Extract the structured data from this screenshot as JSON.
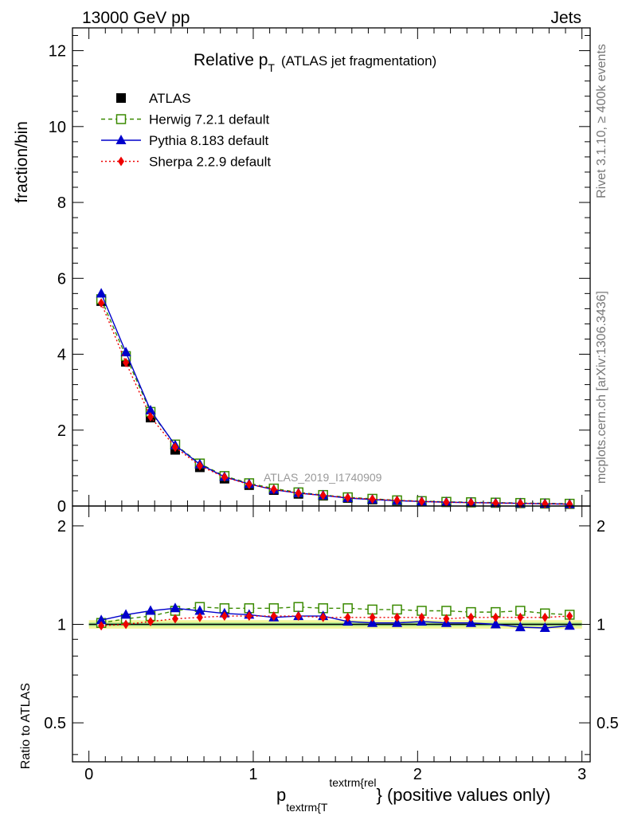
{
  "header": {
    "left": "13000 GeV pp",
    "right": "Jets"
  },
  "side_labels": {
    "rivet": "Rivet 3.1.10, ≥ 400k events",
    "mcplots": "mcplots.cern.ch [arXiv:1306.3436]"
  },
  "chart_data": {
    "type": "line",
    "title_main": "Relative p",
    "title_sub": "T",
    "title_rest": "(ATLAS jet fragmentation)",
    "analysis_label": "ATLAS_2019_I1740909",
    "ylabel": "fraction/bin",
    "ratio_ylabel": "Ratio to ATLAS",
    "xlabel_p": "p",
    "xlabel_sub": "textrm{T",
    "xlabel_sup": "textrm{rel",
    "xlabel_rest": "} (positive values only)",
    "xlim": [
      -0.1,
      3.05
    ],
    "ylim": [
      0,
      12.6
    ],
    "ratio_ylim": [
      0.38,
      2.3
    ],
    "x_ticks": [
      "0",
      "1",
      "2",
      "3"
    ],
    "y_ticks": [
      "0",
      "2",
      "4",
      "6",
      "8",
      "10",
      "12"
    ],
    "ratio_ticks": [
      "0.5",
      "1",
      "2"
    ],
    "x": [
      0.075,
      0.225,
      0.375,
      0.525,
      0.675,
      0.825,
      0.975,
      1.125,
      1.275,
      1.425,
      1.575,
      1.725,
      1.875,
      2.025,
      2.175,
      2.325,
      2.475,
      2.625,
      2.775,
      2.925
    ],
    "series": [
      {
        "name": "ATLAS",
        "color": "#000000",
        "values": [
          5.4,
          3.8,
          2.33,
          1.48,
          1.02,
          0.72,
          0.55,
          0.42,
          0.32,
          0.27,
          0.21,
          0.17,
          0.14,
          0.12,
          0.1,
          0.09,
          0.08,
          0.07,
          0.06,
          0.05
        ]
      },
      {
        "name": "Herwig 7.2.1 default",
        "color": "#3a8a00",
        "values": [
          5.45,
          3.95,
          2.48,
          1.62,
          1.12,
          0.79,
          0.6,
          0.46,
          0.36,
          0.29,
          0.23,
          0.19,
          0.15,
          0.13,
          0.11,
          0.1,
          0.09,
          0.08,
          0.07,
          0.06
        ]
      },
      {
        "name": "Pythia 8.183 default",
        "color": "#0000cc",
        "values": [
          5.6,
          4.05,
          2.52,
          1.6,
          1.1,
          0.77,
          0.58,
          0.43,
          0.34,
          0.28,
          0.21,
          0.17,
          0.14,
          0.12,
          0.1,
          0.09,
          0.08,
          0.07,
          0.06,
          0.05
        ]
      },
      {
        "name": "Sherpa 2.2.9 default",
        "color": "#ee0000",
        "values": [
          5.35,
          3.78,
          2.35,
          1.55,
          1.06,
          0.76,
          0.57,
          0.44,
          0.34,
          0.28,
          0.22,
          0.18,
          0.15,
          0.12,
          0.1,
          0.09,
          0.08,
          0.07,
          0.06,
          0.05
        ]
      }
    ],
    "ratio_series": [
      {
        "name": "Herwig 7.2.1 default",
        "values": [
          1.01,
          1.04,
          1.06,
          1.1,
          1.13,
          1.12,
          1.12,
          1.12,
          1.13,
          1.12,
          1.12,
          1.11,
          1.11,
          1.1,
          1.1,
          1.09,
          1.09,
          1.1,
          1.08,
          1.07
        ]
      },
      {
        "name": "Pythia 8.183 default",
        "values": [
          1.03,
          1.07,
          1.1,
          1.12,
          1.1,
          1.08,
          1.07,
          1.05,
          1.06,
          1.06,
          1.02,
          1.01,
          1.01,
          1.02,
          1.01,
          1.01,
          1.0,
          0.98,
          0.975,
          0.99
        ]
      },
      {
        "name": "Sherpa 2.2.9 default",
        "values": [
          0.99,
          1.0,
          1.02,
          1.04,
          1.05,
          1.06,
          1.06,
          1.06,
          1.06,
          1.05,
          1.05,
          1.05,
          1.05,
          1.05,
          1.04,
          1.05,
          1.05,
          1.05,
          1.05,
          1.06
        ]
      }
    ]
  }
}
